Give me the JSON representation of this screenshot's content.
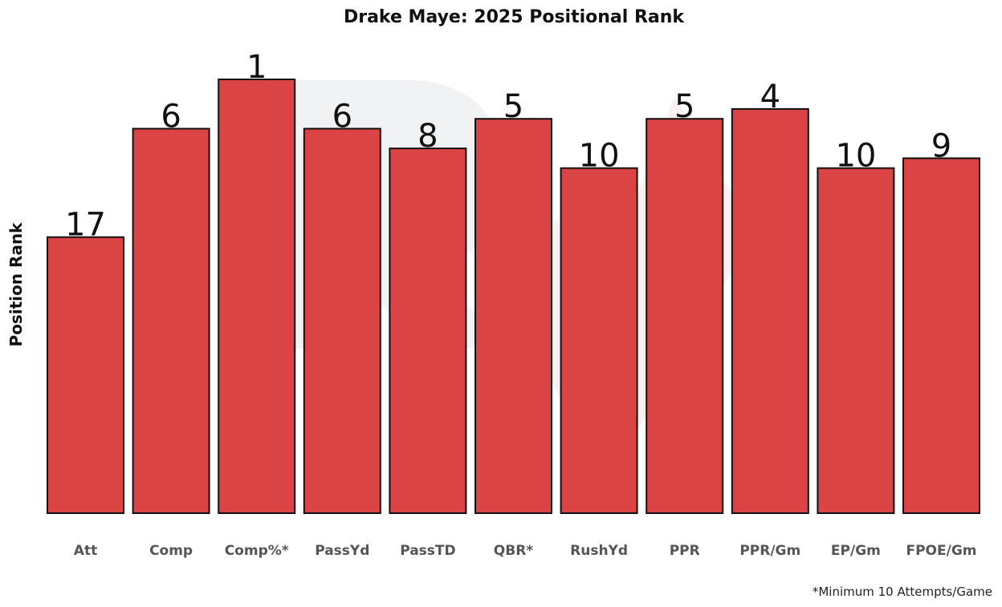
{
  "chart_data": {
    "type": "bar",
    "title": "Drake Maye: 2025 Positional Rank",
    "xlabel": "",
    "ylabel": "Position Rank",
    "categories": [
      "Att",
      "Comp",
      "Comp%*",
      "PassYd",
      "PassTD",
      "QBR*",
      "RushYd",
      "PPR",
      "PPR/Gm",
      "EP/Gm",
      "FPOE/Gm"
    ],
    "values": [
      17,
      6,
      1,
      6,
      8,
      5,
      10,
      5,
      4,
      10,
      9
    ],
    "ylim": [
      45,
      1
    ],
    "y_inverted": true,
    "grid": false,
    "bar_color": "#d93a3a",
    "footnote": "*Minimum 10 Attempts/Game"
  }
}
